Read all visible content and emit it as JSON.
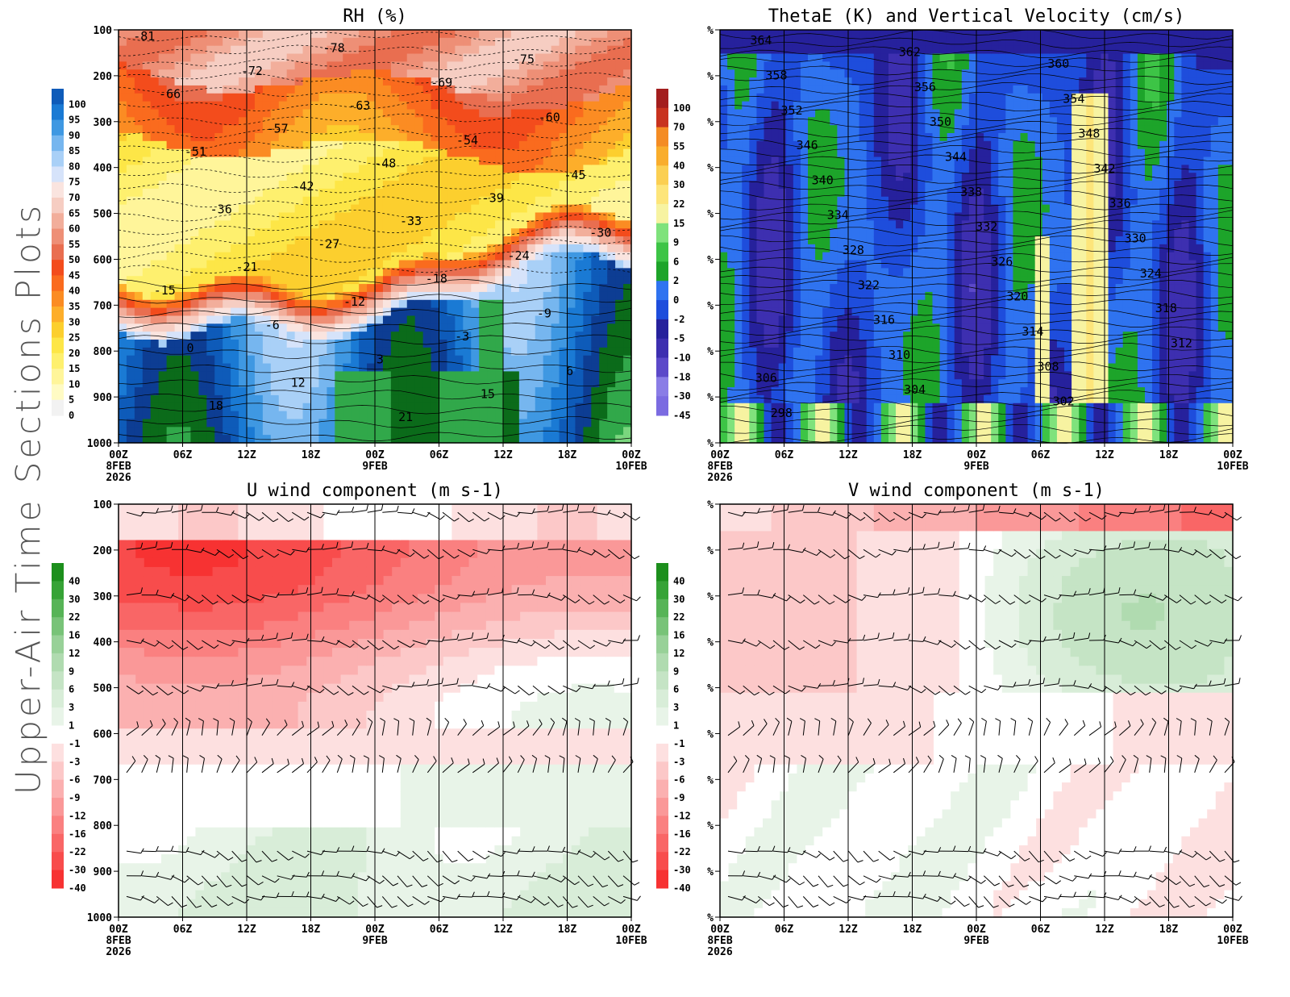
{
  "page": {
    "side_title": "Upper-Air Time Sections Plots"
  },
  "colors": {
    "rh_scale": [
      "#f2f2f2",
      "#fffbc4",
      "#fff59a",
      "#fef06e",
      "#fde647",
      "#fccf2e",
      "#fdae2a",
      "#fb8c23",
      "#fa6b1e",
      "#f34c1c",
      "#e96e50",
      "#ee8f76",
      "#f2ae9b",
      "#f6cdc2",
      "#fae4df",
      "#d6e3fa",
      "#a9d0f7",
      "#76b6ef",
      "#3f98e2",
      "#1a7ad4",
      "#0e5bb9",
      "#0d3d93",
      "#0b6b1a",
      "#31a84a",
      "#7ad67e"
    ],
    "theta_scale": [
      "#f2f2f2",
      "#7b6be1",
      "#8a7de6",
      "#5c49c9",
      "#3d2fb0",
      "#26219c",
      "#1e4ddc",
      "#2f73f0",
      "#1da42a",
      "#3dc446",
      "#7fe27c",
      "#f7f3a1",
      "#fde57a",
      "#fbcf52",
      "#f9ad2c",
      "#f48c24",
      "#c8331f",
      "#a31e1e"
    ],
    "wind_scale": [
      "#1c8f1c",
      "#36a336",
      "#57b457",
      "#78c378",
      "#98d198",
      "#b0dbb0",
      "#c5e4c5",
      "#d8edd8",
      "#e8f4e8",
      "#ffffff",
      "#fde0e0",
      "#fcc8c8",
      "#fbb0b0",
      "#fa9898",
      "#fa8080",
      "#f96666",
      "#f84c4c",
      "#f73232",
      "#fb1414"
    ],
    "frame": "#000000",
    "contour": "#000000",
    "barb": "#000000"
  },
  "chart_data": [
    {
      "type": "heatmap",
      "id": "rh",
      "title": "RH (%)",
      "x_tick_labels": [
        "00Z",
        "06Z",
        "12Z",
        "18Z",
        "00Z",
        "06Z",
        "12Z",
        "18Z",
        "00Z"
      ],
      "x_date_labels": [
        "8FEB",
        "",
        "",
        "",
        "9FEB",
        "",
        "",
        "",
        "10FEB"
      ],
      "x_year_label": "2026",
      "y_tick_labels": [
        "100",
        "200",
        "300",
        "400",
        "500",
        "600",
        "700",
        "800",
        "900",
        "1000"
      ],
      "ylim": [
        100,
        1000
      ],
      "colorbar_labels": [
        "100",
        "95",
        "90",
        "85",
        "80",
        "75",
        "70",
        "65",
        "60",
        "55",
        "50",
        "45",
        "40",
        "35",
        "30",
        "25",
        "20",
        "15",
        "10",
        "5",
        "0"
      ],
      "contour_labels": [
        "-81",
        "-78",
        "-75",
        "-72",
        "-69",
        "-66",
        "-63",
        "-60",
        "-57",
        "-54",
        "-51",
        "-48",
        "-45",
        "-42",
        "-39",
        "-36",
        "-33",
        "-30",
        "-27",
        "-24",
        "-21",
        "-18",
        "-15",
        "-12",
        "-9",
        "-6",
        "-3",
        "0",
        "3",
        "6",
        "12",
        "15",
        "18",
        "21"
      ]
    },
    {
      "type": "heatmap",
      "id": "theta",
      "title": "ThetaE (K) and Vertical Velocity (cm/s)",
      "x_tick_labels": [
        "00Z",
        "06Z",
        "12Z",
        "18Z",
        "00Z",
        "06Z",
        "12Z",
        "18Z",
        "00Z"
      ],
      "x_date_labels": [
        "8FEB",
        "",
        "",
        "",
        "9FEB",
        "",
        "",
        "",
        "10FEB"
      ],
      "x_year_label": "2026",
      "y_tick_labels": [
        "%",
        "%",
        "%",
        "%",
        "%",
        "%",
        "%",
        "%",
        "%",
        "%"
      ],
      "colorbar_labels": [
        "100",
        "70",
        "55",
        "40",
        "30",
        "22",
        "15",
        "9",
        "6",
        "2",
        "0",
        "-2",
        "-5",
        "-10",
        "-18",
        "-30",
        "-45"
      ],
      "contour_labels": [
        "364",
        "362",
        "360",
        "358",
        "356",
        "354",
        "352",
        "350",
        "348",
        "346",
        "344",
        "342",
        "340",
        "338",
        "336",
        "334",
        "332",
        "330",
        "328",
        "326",
        "324",
        "322",
        "320",
        "318",
        "316",
        "314",
        "312",
        "310",
        "308",
        "306",
        "304",
        "302",
        "298"
      ]
    },
    {
      "type": "heatmap",
      "id": "u",
      "title": "U wind component (m s-1)",
      "x_tick_labels": [
        "00Z",
        "06Z",
        "12Z",
        "18Z",
        "00Z",
        "06Z",
        "12Z",
        "18Z",
        "00Z"
      ],
      "x_date_labels": [
        "8FEB",
        "",
        "",
        "",
        "9FEB",
        "",
        "",
        "",
        "10FEB"
      ],
      "x_year_label": "2026",
      "y_tick_labels": [
        "100",
        "200",
        "300",
        "400",
        "500",
        "600",
        "700",
        "800",
        "900",
        "1000"
      ],
      "ylim": [
        100,
        1000
      ],
      "colorbar_labels": [
        "40",
        "30",
        "22",
        "16",
        "12",
        "9",
        "6",
        "3",
        "1",
        "-1",
        "-3",
        "-6",
        "-9",
        "-12",
        "-16",
        "-22",
        "-30",
        "-40"
      ]
    },
    {
      "type": "heatmap",
      "id": "v",
      "title": "V wind component (m s-1)",
      "x_tick_labels": [
        "00Z",
        "06Z",
        "12Z",
        "18Z",
        "00Z",
        "06Z",
        "12Z",
        "18Z",
        "00Z"
      ],
      "x_date_labels": [
        "8FEB",
        "",
        "",
        "",
        "9FEB",
        "",
        "",
        "",
        "10FEB"
      ],
      "x_year_label": "2026",
      "y_tick_labels": [
        "%",
        "%",
        "%",
        "%",
        "%",
        "%",
        "%",
        "%",
        "%",
        "%"
      ],
      "colorbar_labels": [
        "40",
        "30",
        "22",
        "16",
        "12",
        "9",
        "6",
        "3",
        "1",
        "-1",
        "-3",
        "-6",
        "-9",
        "-12",
        "-16",
        "-22",
        "-30",
        "-40"
      ]
    }
  ]
}
